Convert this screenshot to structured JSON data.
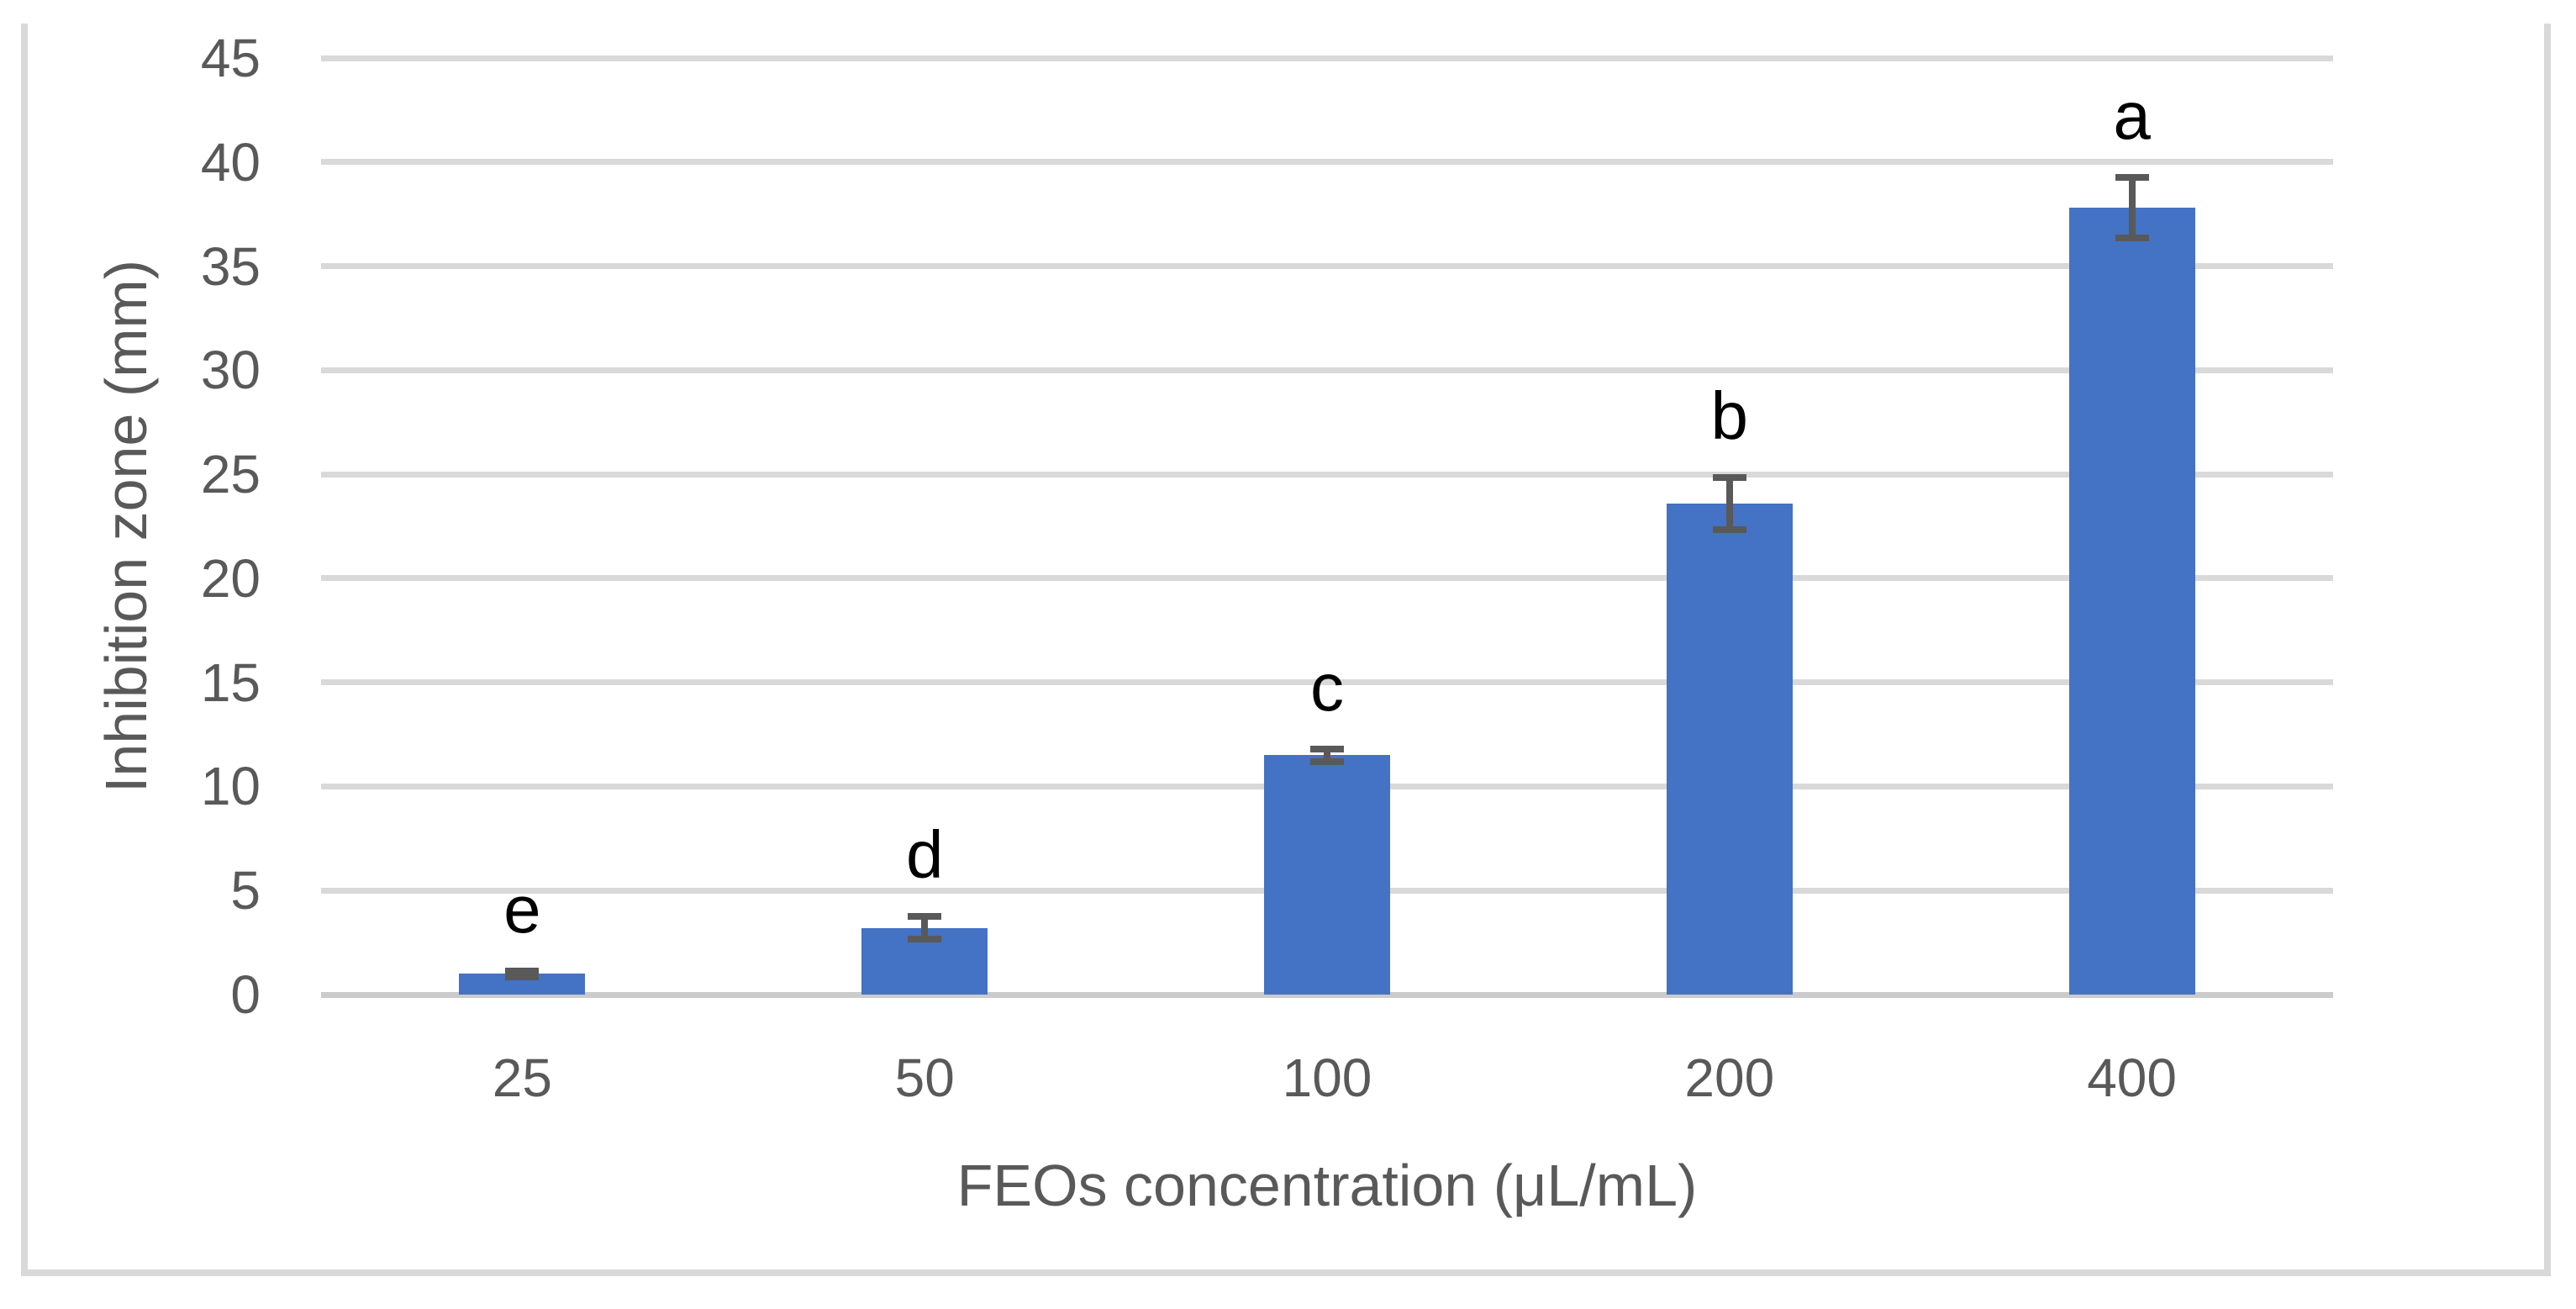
{
  "chart_data": {
    "type": "bar",
    "title": "",
    "categories": [
      "25",
      "50",
      "100",
      "200",
      "400"
    ],
    "series": [
      {
        "name": "Inhibition zone",
        "values": [
          1.0,
          3.2,
          11.5,
          23.6,
          37.8
        ],
        "errors": [
          0.15,
          0.55,
          0.3,
          1.25,
          1.45
        ]
      }
    ],
    "point_labels": [
      "e",
      "d",
      "c",
      "b",
      "a"
    ],
    "xlabel": "FEOs concentration (μL/mL)",
    "ylabel": "Inhibition zone (mm)",
    "ylim": [
      0,
      45
    ],
    "yticks": [
      0,
      5,
      10,
      15,
      20,
      25,
      30,
      35,
      40,
      45
    ],
    "grid": "horizontal-only",
    "legend_position": "none",
    "colors": {
      "bar": "#4472C4",
      "error_bar": "#595959",
      "gridline": "#D9D9D9",
      "axis_line": "#CBCBCB",
      "tick_label": "#595959",
      "axis_title": "#595959",
      "point_label": "#000000",
      "frame_border": "#D9D9D9",
      "background": "#FFFFFF"
    }
  }
}
